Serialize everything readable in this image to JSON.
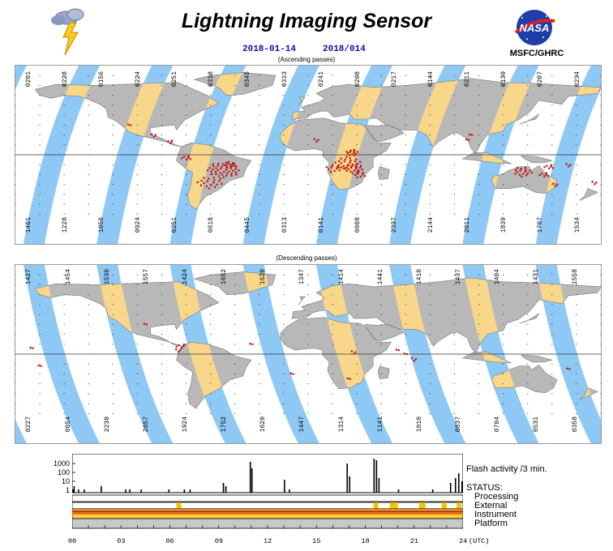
{
  "header": {
    "title": "Lightning Imaging Sensor",
    "date_iso": "2018-01-14",
    "date_doy": "2018/014",
    "org": "MSFC/GHRC",
    "logo_text": "NASA"
  },
  "ascending": {
    "label": "(Ascending passes)",
    "top_ticks": [
      "0201",
      "0228",
      "0156",
      "0224",
      "0251",
      "0318",
      "0345",
      "0313",
      "0241",
      "0208",
      "0217",
      "0144",
      "0211",
      "0139",
      "0207",
      "0234"
    ],
    "bottom_ticks": [
      "1401",
      "1228",
      "1056",
      "0924",
      "0251",
      "0618",
      "0445",
      "0313",
      "0141",
      "0008",
      "2337",
      "2144",
      "2011",
      "1839",
      "1707",
      "1534"
    ]
  },
  "descending": {
    "label": "(Descending passes)",
    "top_ticks": [
      "1427",
      "1454",
      "1530",
      "1557",
      "1424",
      "1652",
      "1620",
      "1347",
      "1414",
      "1441",
      "1410",
      "1437",
      "1404",
      "1431",
      "1558"
    ],
    "bottom_ticks": [
      "0227",
      "0054",
      "2230",
      "2057",
      "1924",
      "1752",
      "1620",
      "1447",
      "1314",
      "1141",
      "1010",
      "0837",
      "0704",
      "0531",
      "0358"
    ]
  },
  "activity": {
    "y_ticks": [
      "1000",
      "100",
      "10",
      "1"
    ],
    "flash_label": "Flash activity /3 min.",
    "status_label": "STATUS:",
    "status_items": [
      "Processing",
      "External",
      "Instrument",
      "Platform"
    ],
    "x_ticks": [
      "00",
      "03",
      "06",
      "09",
      "12",
      "15",
      "18",
      "21",
      "24"
    ],
    "x_unit": "(UTC)"
  },
  "colors": {
    "ocean_swath": "#8ec8f4",
    "land": "#b8b8b8",
    "land_swath": "#f9d78a",
    "flash": "#c01010",
    "date_text": "#1010b0"
  }
}
